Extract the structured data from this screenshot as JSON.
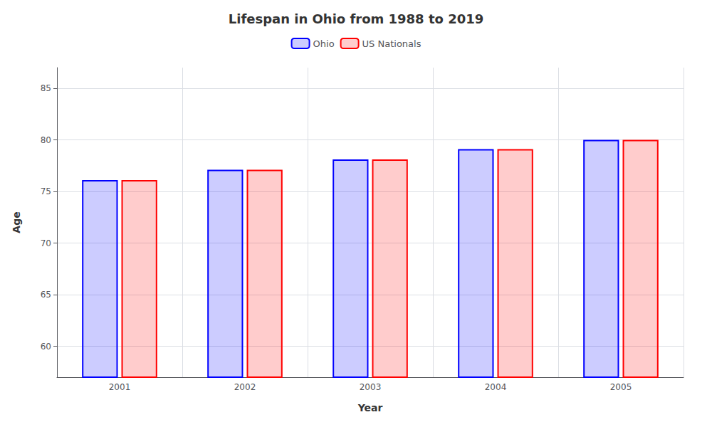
{
  "chart_data": {
    "type": "bar",
    "title": "Lifespan in Ohio from 1988 to 2019",
    "xlabel": "Year",
    "ylabel": "Age",
    "categories": [
      "2001",
      "2002",
      "2003",
      "2004",
      "2005"
    ],
    "series": [
      {
        "name": "Ohio",
        "color": "#0000ff",
        "values": [
          76.1,
          77.1,
          78.1,
          79.1,
          80.0
        ]
      },
      {
        "name": "US Nationals",
        "color": "#ff0000",
        "values": [
          76.1,
          77.1,
          78.1,
          79.1,
          80.0
        ]
      }
    ],
    "ylim": [
      57,
      87
    ],
    "yticks": [
      60,
      65,
      70,
      75,
      80,
      85
    ],
    "grid": true,
    "legend": "top"
  }
}
